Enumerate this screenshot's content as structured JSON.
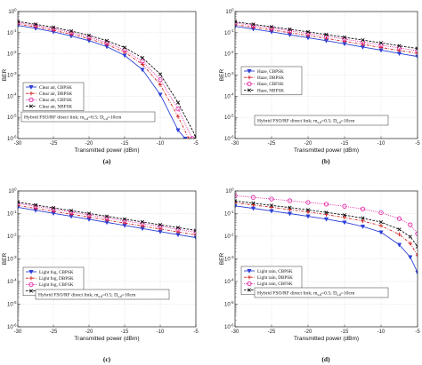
{
  "chart_data": [
    {
      "type": "line",
      "panel": "(a)",
      "xlabel": "Transmitted power (dBm)",
      "ylabel": "BER",
      "xlim": [
        -30,
        -5
      ],
      "ylim": [
        1e-06,
        1
      ],
      "yscale": "log",
      "xticks": [
        -30,
        -25,
        -20,
        -15,
        -10,
        -5
      ],
      "yticks": [
        1,
        0.1,
        0.01,
        0.001,
        0.0001,
        1e-05,
        1e-06
      ],
      "ytick_labels": [
        "10^0",
        "10^-1",
        "10^-2",
        "10^-3",
        "10^-4",
        "10^-5",
        "10^-6"
      ],
      "grid": true,
      "legend": "left",
      "annotation": "Hybrid FSO/RF direct link;  m_{s,d}=0.5;  D_{s,d}=10cm",
      "series": [
        {
          "name": "Clear air, CBPSK",
          "color": "#2b3fd6",
          "marker": "triangle-down",
          "dash": "solid",
          "x": [
            -30,
            -27.5,
            -25,
            -22.5,
            -20,
            -17.5,
            -15,
            -12.5,
            -10,
            -7.5,
            -6.5
          ],
          "y": [
            0.22,
            0.16,
            0.11,
            0.07,
            0.042,
            0.022,
            0.0085,
            0.0018,
            0.00012,
            2.5e-06,
            1e-06
          ]
        },
        {
          "name": "Clear air, DBPSK",
          "color": "#d42020",
          "marker": "plus",
          "dash": "dashdot",
          "x": [
            -30,
            -27.5,
            -25,
            -22.5,
            -20,
            -17.5,
            -15,
            -12.5,
            -10,
            -7.5,
            -6
          ],
          "y": [
            0.26,
            0.19,
            0.13,
            0.085,
            0.052,
            0.028,
            0.012,
            0.0032,
            0.00035,
            1.1e-05,
            1e-06
          ]
        },
        {
          "name": "Clear air, CBFSK",
          "color": "#e0189f",
          "marker": "circle",
          "dash": "dotted",
          "x": [
            -30,
            -27.5,
            -25,
            -22.5,
            -20,
            -17.5,
            -15,
            -12.5,
            -10,
            -7.5,
            -5.5
          ],
          "y": [
            0.3,
            0.22,
            0.155,
            0.1,
            0.062,
            0.034,
            0.015,
            0.0045,
            0.0006,
            2.5e-05,
            1e-06
          ]
        },
        {
          "name": "Clear air, NBFSK",
          "color": "#111111",
          "marker": "x",
          "dash": "dashed",
          "x": [
            -30,
            -27.5,
            -25,
            -22.5,
            -20,
            -17.5,
            -15,
            -12.5,
            -10,
            -7.5,
            -5
          ],
          "y": [
            0.34,
            0.25,
            0.18,
            0.12,
            0.075,
            0.042,
            0.02,
            0.0065,
            0.0011,
            5e-05,
            1.2e-06
          ]
        }
      ]
    },
    {
      "type": "line",
      "panel": "(b)",
      "xlabel": "Transmitted power (dBm)",
      "ylabel": "BER",
      "xlim": [
        -30,
        -5
      ],
      "ylim": [
        1e-06,
        1
      ],
      "yscale": "log",
      "xticks": [
        -30,
        -25,
        -20,
        -15,
        -10,
        -5
      ],
      "yticks": [
        1,
        0.1,
        0.01,
        0.001,
        0.0001,
        1e-05,
        1e-06
      ],
      "ytick_labels": [
        "10^0",
        "10^-1",
        "10^-2",
        "10^-3",
        "10^-4",
        "10^-5",
        "10^-6"
      ],
      "grid": true,
      "legend": "left",
      "annotation": "Hybrid FSO/RF direct link;  m_{s,d}=0.5;  D_{s,d}=10cm",
      "series": [
        {
          "name": "Haze, CBPSK",
          "color": "#2b3fd6",
          "marker": "triangle-down",
          "dash": "solid",
          "x": [
            -30,
            -27.5,
            -25,
            -22.5,
            -20,
            -17.5,
            -15,
            -12.5,
            -10,
            -7.5,
            -5
          ],
          "y": [
            0.2,
            0.15,
            0.11,
            0.08,
            0.058,
            0.042,
            0.03,
            0.021,
            0.015,
            0.0105,
            0.0075
          ]
        },
        {
          "name": "Haze, DBPSK",
          "color": "#d42020",
          "marker": "plus",
          "dash": "dashdot",
          "x": [
            -30,
            -27.5,
            -25,
            -22.5,
            -20,
            -17.5,
            -15,
            -12.5,
            -10,
            -7.5,
            -5
          ],
          "y": [
            0.24,
            0.18,
            0.135,
            0.1,
            0.074,
            0.054,
            0.039,
            0.028,
            0.02,
            0.0145,
            0.0105
          ]
        },
        {
          "name": "Haze, CBFSK",
          "color": "#e0189f",
          "marker": "circle",
          "dash": "dotted",
          "x": [
            -30,
            -27.5,
            -25,
            -22.5,
            -20,
            -17.5,
            -15,
            -12.5,
            -10,
            -7.5,
            -5
          ],
          "y": [
            0.29,
            0.22,
            0.165,
            0.123,
            0.092,
            0.068,
            0.05,
            0.036,
            0.026,
            0.019,
            0.014
          ]
        },
        {
          "name": "Haze, NBFSK",
          "color": "#111111",
          "marker": "x",
          "dash": "dashed",
          "x": [
            -30,
            -27.5,
            -25,
            -22.5,
            -20,
            -17.5,
            -15,
            -12.5,
            -10,
            -7.5,
            -5
          ],
          "y": [
            0.33,
            0.25,
            0.19,
            0.145,
            0.11,
            0.082,
            0.061,
            0.045,
            0.033,
            0.024,
            0.018
          ]
        }
      ]
    },
    {
      "type": "line",
      "panel": "(c)",
      "xlabel": "Transmitted power (dBm)",
      "ylabel": "BER",
      "xlim": [
        -30,
        -5
      ],
      "ylim": [
        1e-06,
        1
      ],
      "yscale": "log",
      "xticks": [
        -30,
        -25,
        -20,
        -15,
        -10,
        -5
      ],
      "yticks": [
        1,
        0.1,
        0.01,
        0.001,
        0.0001,
        1e-05,
        1e-06
      ],
      "ytick_labels": [
        "10^0",
        "10^-1",
        "10^-2",
        "10^-3",
        "10^-4",
        "10^-5",
        "10^-6"
      ],
      "grid": true,
      "legend": "left",
      "annotation": "Hybrid FSO/RF direct link;  m_{s,d}=0.5;  D_{s,d}=10cm",
      "series": [
        {
          "name": "Light fog, CBPSK",
          "color": "#2b3fd6",
          "marker": "triangle-down",
          "dash": "solid",
          "x": [
            -30,
            -27.5,
            -25,
            -22.5,
            -20,
            -17.5,
            -15,
            -12.5,
            -10,
            -7.5,
            -5
          ],
          "y": [
            0.19,
            0.14,
            0.103,
            0.076,
            0.056,
            0.041,
            0.03,
            0.022,
            0.016,
            0.0118,
            0.0087
          ]
        },
        {
          "name": "Light fog, DBPSK",
          "color": "#d42020",
          "marker": "plus",
          "dash": "dashdot",
          "x": [
            -30,
            -27.5,
            -25,
            -22.5,
            -20,
            -17.5,
            -15,
            -12.5,
            -10,
            -7.5,
            -5
          ],
          "y": [
            0.23,
            0.17,
            0.127,
            0.094,
            0.07,
            0.052,
            0.038,
            0.028,
            0.021,
            0.0155,
            0.0115
          ]
        },
        {
          "name": "Light fog, CBFSK",
          "color": "#e0189f",
          "marker": "circle",
          "dash": "dotted",
          "x": [
            -30,
            -27.5,
            -25,
            -22.5,
            -20,
            -17.5,
            -15,
            -12.5,
            -10,
            -7.5,
            -5
          ],
          "y": [
            0.28,
            0.21,
            0.157,
            0.117,
            0.087,
            0.065,
            0.048,
            0.036,
            0.027,
            0.02,
            0.015
          ]
        },
        {
          "name": "Light fog, NBFSK",
          "color": "#111111",
          "marker": "x",
          "dash": "dashed",
          "x": [
            -30,
            -27.5,
            -25,
            -22.5,
            -20,
            -17.5,
            -15,
            -12.5,
            -10,
            -7.5,
            -5
          ],
          "y": [
            0.32,
            0.24,
            0.18,
            0.135,
            0.101,
            0.076,
            0.057,
            0.043,
            0.032,
            0.024,
            0.018
          ]
        }
      ]
    },
    {
      "type": "line",
      "panel": "(d)",
      "xlabel": "Transmitted power (dBm)",
      "ylabel": "BER",
      "xlim": [
        -30,
        -5
      ],
      "ylim": [
        1e-06,
        1
      ],
      "yscale": "log",
      "xticks": [
        -30,
        -25,
        -20,
        -15,
        -10,
        -5
      ],
      "yticks": [
        1,
        0.1,
        0.01,
        0.001,
        0.0001,
        1e-05,
        1e-06
      ],
      "ytick_labels": [
        "10^0",
        "10^-1",
        "10^-2",
        "10^-3",
        "10^-4",
        "10^-5",
        "10^-6"
      ],
      "grid": true,
      "legend": "left",
      "annotation": "Hybrid FSO/RF direct link;  m_{s,d}=0.5;  D_{s,d}=10cm",
      "series": [
        {
          "name": "Light rain, CBPSK",
          "color": "#2b3fd6",
          "marker": "triangle-down",
          "dash": "solid",
          "x": [
            -30,
            -27.5,
            -25,
            -22.5,
            -20,
            -17.5,
            -15,
            -12.5,
            -10,
            -7.5,
            -6,
            -5
          ],
          "y": [
            0.22,
            0.17,
            0.13,
            0.1,
            0.076,
            0.057,
            0.041,
            0.027,
            0.015,
            0.0042,
            0.0012,
            0.00025
          ]
        },
        {
          "name": "Light rain, DBPSK",
          "color": "#d42020",
          "marker": "plus",
          "dash": "dashdot",
          "x": [
            -30,
            -27.5,
            -25,
            -22.5,
            -20,
            -17.5,
            -15,
            -12.5,
            -10,
            -7.5,
            -6,
            -5
          ],
          "y": [
            0.3,
            0.24,
            0.19,
            0.15,
            0.117,
            0.09,
            0.067,
            0.047,
            0.029,
            0.012,
            0.0048,
            0.0014
          ]
        },
        {
          "name": "Light rain, CBFSK",
          "color": "#e0189f",
          "marker": "circle",
          "dash": "dotted",
          "x": [
            -30,
            -27.5,
            -25,
            -22.5,
            -20,
            -17.5,
            -15,
            -12.5,
            -10,
            -7.5,
            -6,
            -5
          ],
          "y": [
            0.62,
            0.52,
            0.44,
            0.37,
            0.31,
            0.26,
            0.21,
            0.16,
            0.11,
            0.06,
            0.032,
            0.013
          ]
        },
        {
          "name": "Light rain, NBFSK",
          "color": "#111111",
          "marker": "x",
          "dash": "dashed",
          "x": [
            -30,
            -27.5,
            -25,
            -22.5,
            -20,
            -17.5,
            -15,
            -12.5,
            -10,
            -7.5,
            -6,
            -5
          ],
          "y": [
            0.36,
            0.29,
            0.23,
            0.185,
            0.145,
            0.113,
            0.086,
            0.063,
            0.042,
            0.02,
            0.0095,
            0.0035
          ]
        }
      ]
    }
  ]
}
